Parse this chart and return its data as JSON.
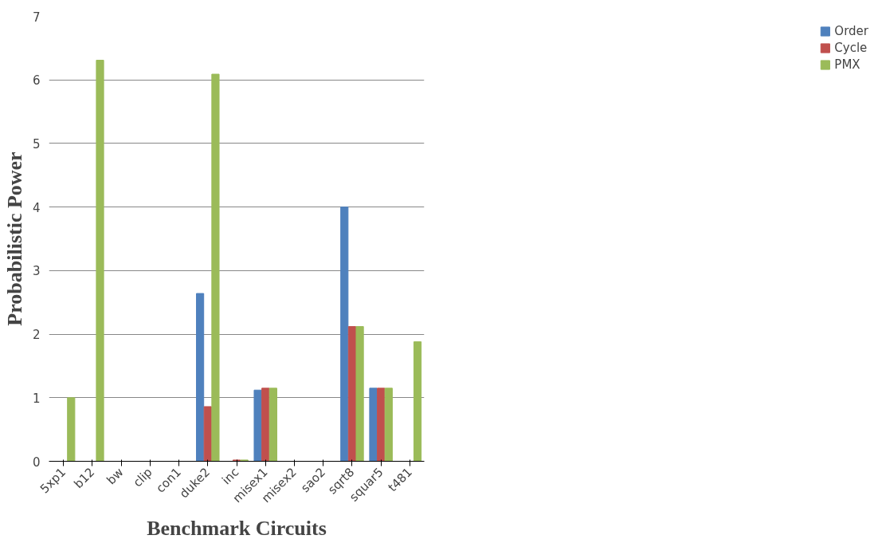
{
  "chart_data": {
    "type": "bar",
    "xlabel": "Benchmark Circuits",
    "ylabel": "Probabilistic Power",
    "categories": [
      "5xp1",
      "b12",
      "bw",
      "clip",
      "con1",
      "duke2",
      "inc",
      "misex1",
      "misex2",
      "sao2",
      "sqrt8",
      "squar5",
      "t481"
    ],
    "series": [
      {
        "name": "Order",
        "color": "#4f81bd",
        "values": [
          0,
          0,
          0,
          0,
          0,
          2.64,
          0,
          1.12,
          0,
          0,
          4.0,
          1.15,
          0
        ]
      },
      {
        "name": "Cycle",
        "color": "#c0504d",
        "values": [
          0,
          0,
          0,
          0,
          0,
          0.86,
          0.02,
          1.15,
          0,
          0,
          2.12,
          1.15,
          0
        ]
      },
      {
        "name": "PMX",
        "color": "#9bbb59",
        "values": [
          1.0,
          6.31,
          0,
          0,
          0,
          6.09,
          0.02,
          1.15,
          0,
          0,
          2.12,
          1.15,
          1.88
        ]
      }
    ],
    "ylim": [
      0,
      7
    ],
    "yticks": [
      0,
      1,
      2,
      3,
      4,
      5,
      6,
      7
    ],
    "grid": "y",
    "legend": "right"
  }
}
